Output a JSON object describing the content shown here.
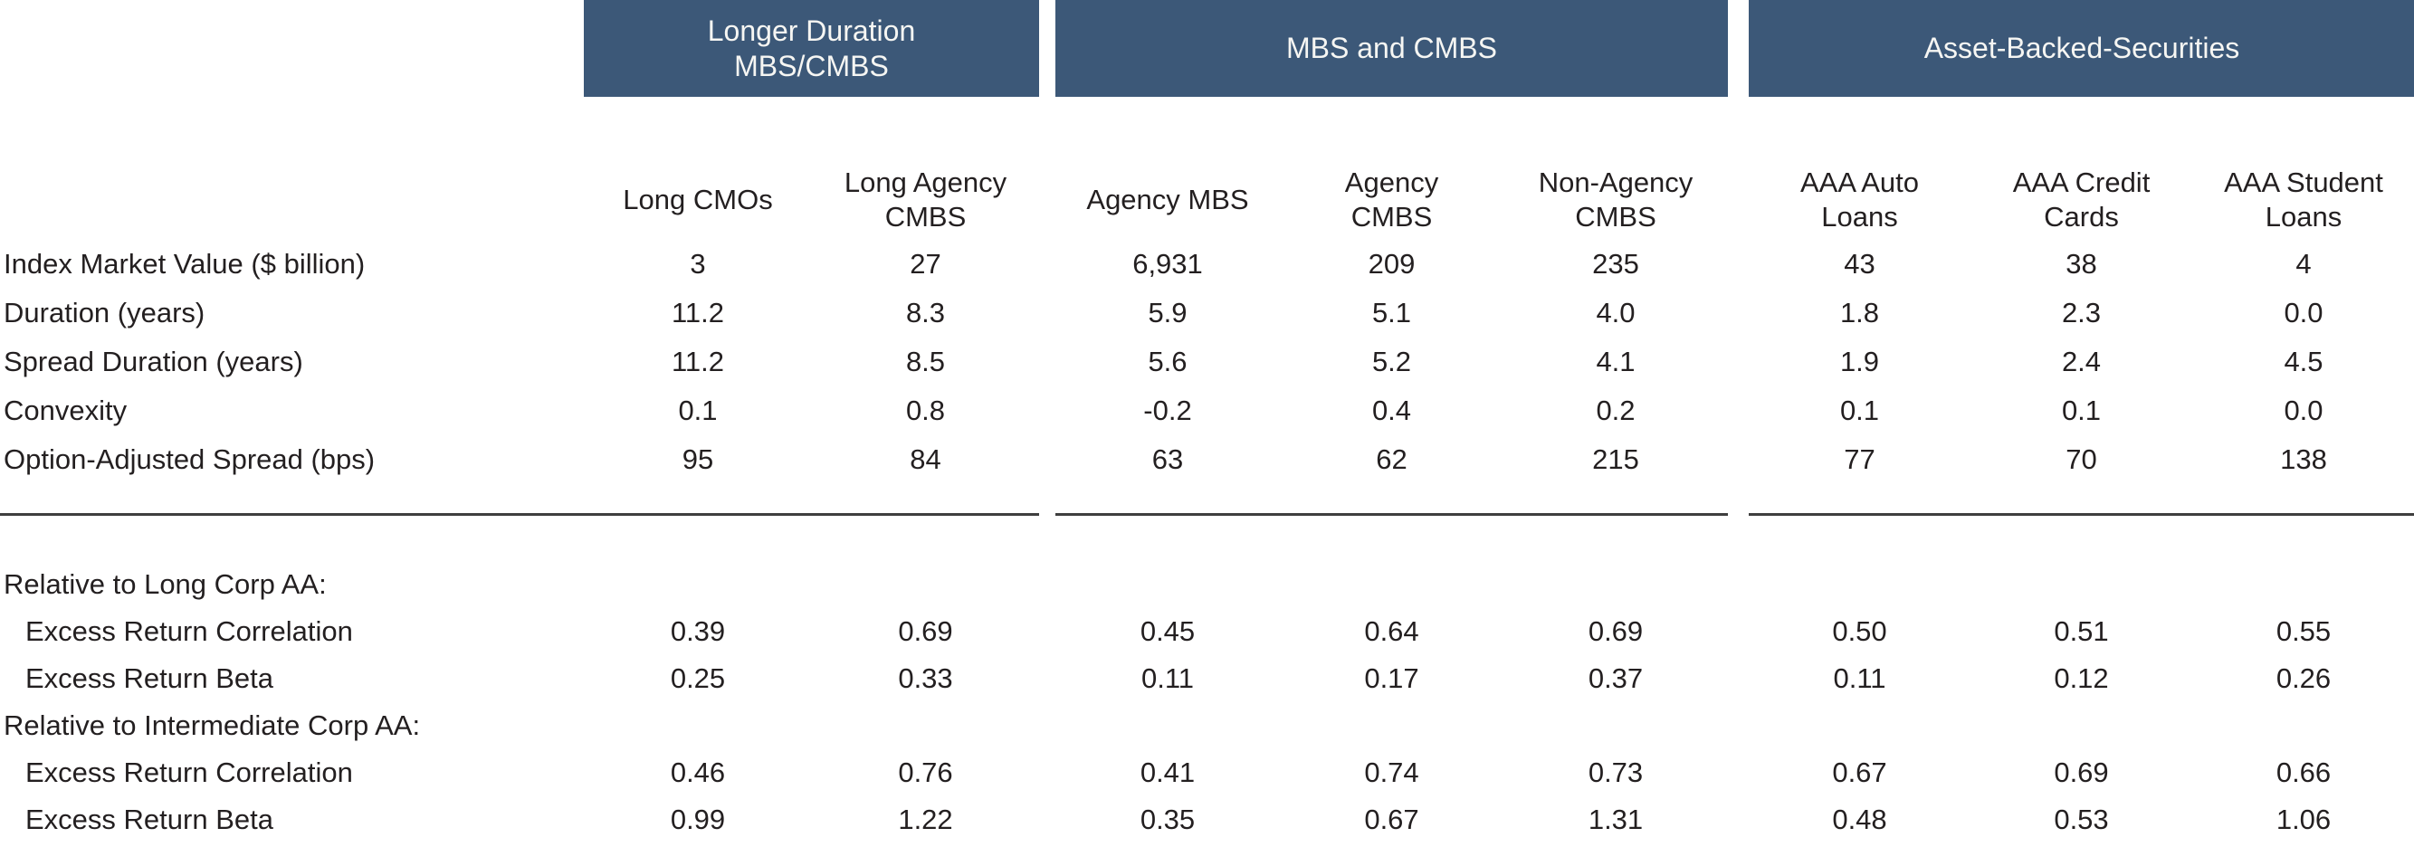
{
  "accent_color": "#3C5878",
  "text_color": "#231F20",
  "chart_data": {
    "type": "table",
    "column_groups": [
      {
        "label": "Longer Duration\nMBS/CMBS",
        "span": 2
      },
      {
        "label": "MBS and CMBS",
        "span": 3
      },
      {
        "label": "Asset-Backed-Securities",
        "span": 3
      }
    ],
    "columns": [
      "Long CMOs",
      "Long Agency\nCMBS",
      "Agency MBS",
      "Agency\nCMBS",
      "Non-Agency\nCMBS",
      "AAA Auto\nLoans",
      "AAA Credit\nCards",
      "AAA Student\nLoans"
    ],
    "stats_rows": [
      {
        "label": "Index Market Value ($ billion)",
        "indent": false,
        "values": [
          "3",
          "27",
          "6,931",
          "209",
          "235",
          "43",
          "38",
          "4"
        ]
      },
      {
        "label": "Duration (years)",
        "indent": false,
        "values": [
          "11.2",
          "8.3",
          "5.9",
          "5.1",
          "4.0",
          "1.8",
          "2.3",
          "0.0"
        ]
      },
      {
        "label": "Spread Duration (years)",
        "indent": false,
        "values": [
          "11.2",
          "8.5",
          "5.6",
          "5.2",
          "4.1",
          "1.9",
          "2.4",
          "4.5"
        ]
      },
      {
        "label": "Convexity",
        "indent": false,
        "values": [
          "0.1",
          "0.8",
          "-0.2",
          "0.4",
          "0.2",
          "0.1",
          "0.1",
          "0.0"
        ]
      },
      {
        "label": "Option-Adjusted Spread (bps)",
        "indent": false,
        "values": [
          "95",
          "84",
          "63",
          "62",
          "215",
          "77",
          "70",
          "138"
        ]
      }
    ],
    "relative_rows": [
      {
        "label": "Relative to Long Corp AA:",
        "indent": false,
        "values": []
      },
      {
        "label": "Excess Return Correlation",
        "indent": true,
        "values": [
          "0.39",
          "0.69",
          "0.45",
          "0.64",
          "0.69",
          "0.50",
          "0.51",
          "0.55"
        ]
      },
      {
        "label": "Excess Return Beta",
        "indent": true,
        "values": [
          "0.25",
          "0.33",
          "0.11",
          "0.17",
          "0.37",
          "0.11",
          "0.12",
          "0.26"
        ]
      },
      {
        "label": "Relative to Intermediate Corp AA:",
        "indent": false,
        "values": []
      },
      {
        "label": "Excess Return Correlation",
        "indent": true,
        "values": [
          "0.46",
          "0.76",
          "0.41",
          "0.74",
          "0.73",
          "0.67",
          "0.69",
          "0.66"
        ]
      },
      {
        "label": "Excess Return Beta",
        "indent": true,
        "values": [
          "0.99",
          "1.22",
          "0.35",
          "0.67",
          "1.31",
          "0.48",
          "0.53",
          "1.06"
        ]
      }
    ]
  }
}
